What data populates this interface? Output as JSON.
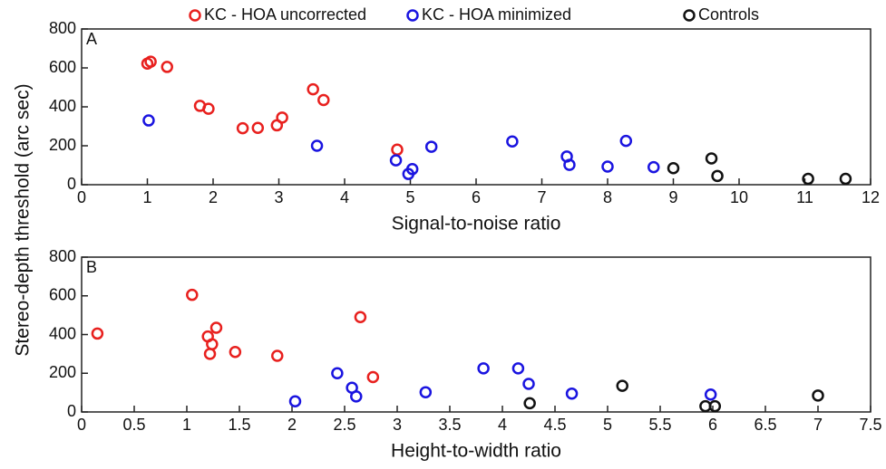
{
  "chart_data": [
    {
      "type": "scatter",
      "panel_label": "A",
      "xlabel": "Signal-to-noise ratio",
      "ylabel": "Stereo-depth threshold (arc sec)",
      "xlim": [
        0,
        12
      ],
      "ylim": [
        0,
        800
      ],
      "xticks": [
        0,
        1,
        2,
        3,
        4,
        5,
        6,
        7,
        8,
        9,
        10,
        11,
        12
      ],
      "yticks": [
        0,
        200,
        400,
        600,
        800
      ],
      "series": [
        {
          "name": "KC - HOA uncorrected",
          "color": "#e8201e",
          "x": [
            1.0,
            1.05,
            1.3,
            1.8,
            1.93,
            2.45,
            2.68,
            2.97,
            3.05,
            3.52,
            3.68,
            4.8
          ],
          "values": [
            622,
            632,
            605,
            405,
            390,
            290,
            292,
            305,
            345,
            490,
            435,
            180
          ]
        },
        {
          "name": "KC - HOA minimized",
          "color": "#1a14e0",
          "x": [
            1.02,
            3.58,
            4.78,
            4.97,
            5.03,
            5.32,
            6.55,
            7.38,
            7.42,
            8.0,
            8.28,
            8.7
          ],
          "values": [
            330,
            200,
            125,
            55,
            80,
            195,
            222,
            145,
            102,
            93,
            225,
            90
          ]
        },
        {
          "name": "Controls",
          "color": "#111111",
          "x": [
            9.0,
            9.58,
            9.67,
            11.05,
            11.62
          ],
          "values": [
            85,
            135,
            45,
            30,
            30
          ]
        }
      ]
    },
    {
      "type": "scatter",
      "panel_label": "B",
      "xlabel": "Height-to-width ratio",
      "xlim": [
        0,
        7.5
      ],
      "ylim": [
        0,
        800
      ],
      "xticks": [
        0,
        0.5,
        1,
        1.5,
        2,
        2.5,
        3,
        3.5,
        4,
        4.5,
        5,
        5.5,
        6,
        6.5,
        7,
        7.5
      ],
      "yticks": [
        0,
        200,
        400,
        600,
        800
      ],
      "series": [
        {
          "color": "#e8201e",
          "x": [
            0.15,
            1.05,
            1.2,
            1.22,
            1.24,
            1.28,
            1.46,
            1.86,
            2.65,
            2.77
          ],
          "values": [
            405,
            605,
            390,
            300,
            350,
            435,
            310,
            290,
            490,
            180
          ]
        },
        {
          "color": "#1a14e0",
          "x": [
            2.03,
            2.43,
            2.57,
            2.61,
            3.27,
            3.82,
            4.15,
            4.25,
            4.66,
            5.98
          ],
          "values": [
            55,
            200,
            125,
            80,
            102,
            225,
            225,
            145,
            95,
            90
          ]
        },
        {
          "color": "#111111",
          "x": [
            4.26,
            5.14,
            5.93,
            6.02,
            7.0
          ],
          "values": [
            45,
            135,
            30,
            30,
            85
          ]
        }
      ]
    }
  ]
}
